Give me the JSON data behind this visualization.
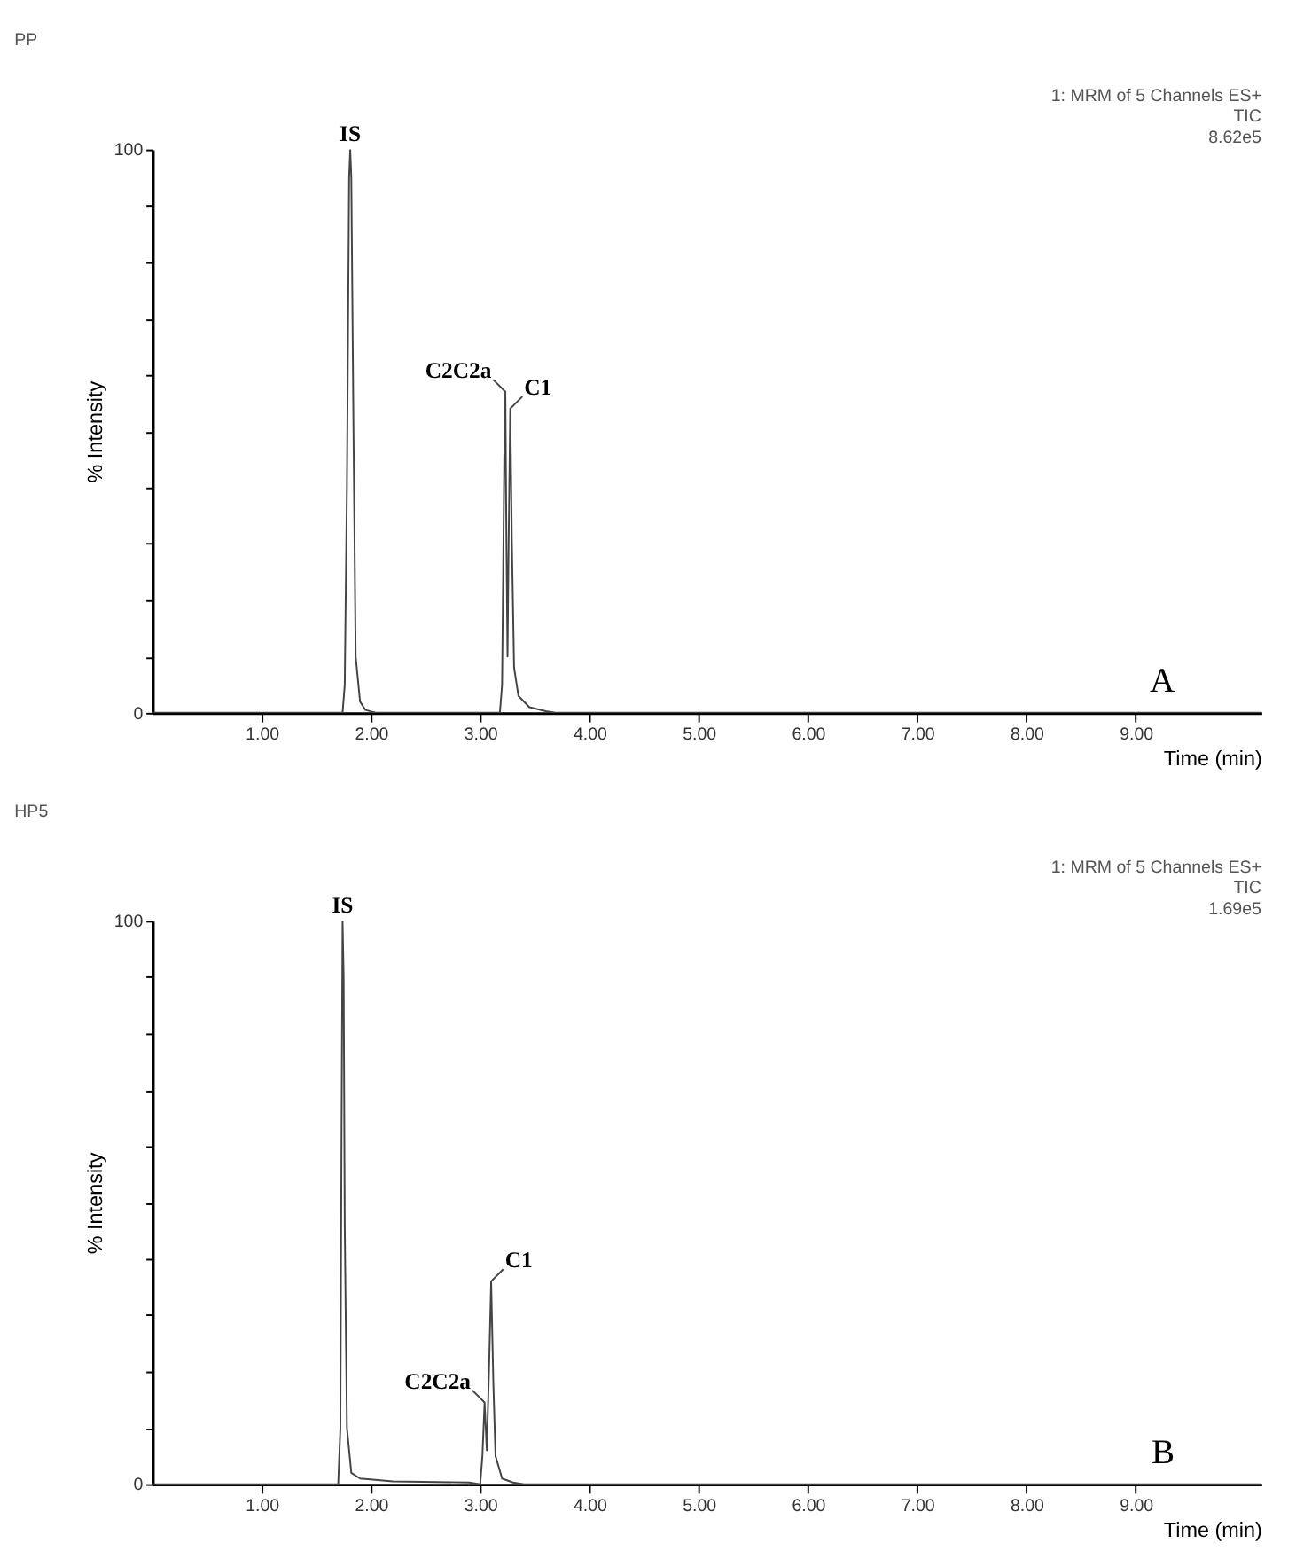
{
  "chart_data": [
    {
      "type": "line",
      "title": "PP",
      "xlabel": "Time (min)",
      "ylabel": "% Intensity",
      "x": [
        0,
        1.74,
        1.76,
        1.78,
        1.8,
        1.81,
        1.82,
        1.84,
        1.86,
        1.9,
        1.95,
        2.05,
        3.18,
        3.2,
        3.22,
        3.23,
        3.24,
        3.25,
        3.26,
        3.275,
        3.29,
        3.31,
        3.35,
        3.45,
        3.6,
        3.7,
        10.15
      ],
      "series": [
        {
          "color": "#444444",
          "values": [
            0,
            0,
            5,
            40,
            95,
            100,
            95,
            50,
            10,
            2,
            0.5,
            0,
            0,
            5,
            45,
            57,
            30,
            10,
            30,
            54,
            30,
            8,
            3,
            1,
            0.3,
            0,
            0
          ]
        }
      ],
      "xlim": [
        0,
        10.15
      ],
      "ylim": [
        0,
        100
      ],
      "xticks": [
        {
          "value": 1,
          "label": "1.00"
        },
        {
          "value": 2,
          "label": "2.00"
        },
        {
          "value": 3,
          "label": "3.00"
        },
        {
          "value": 4,
          "label": "4.00"
        },
        {
          "value": 5,
          "label": "5.00"
        },
        {
          "value": 6,
          "label": "6.00"
        },
        {
          "value": 7,
          "label": "7.00"
        },
        {
          "value": 8,
          "label": "8.00"
        },
        {
          "value": 9,
          "label": "9.00"
        }
      ],
      "yticks": [
        0,
        {
          "value": 10,
          "label": null
        },
        {
          "value": 20,
          "label": null
        },
        {
          "value": 30,
          "label": null
        },
        {
          "value": 40,
          "label": null
        },
        {
          "value": 50,
          "label": null
        },
        {
          "value": 60,
          "label": null
        },
        {
          "value": 70,
          "label": null
        },
        {
          "value": 80,
          "label": null
        },
        {
          "value": 90,
          "label": null
        },
        100
      ],
      "grid": false,
      "annotations": [
        "1: MRM of 5 Channels ES+",
        "TIC",
        "8.62e5",
        "A",
        {
          "text": "IS",
          "x": 1.81,
          "y": 100
        },
        {
          "text": "C2C2a",
          "x": 3.23,
          "y": 57
        },
        {
          "text": "C1",
          "x": 3.275,
          "y": 54
        }
      ]
    },
    {
      "type": "line",
      "title": "HP5",
      "xlabel": "Time (min)",
      "ylabel": "% Intensity",
      "x": [
        0,
        1.7,
        1.72,
        1.73,
        1.74,
        1.75,
        1.76,
        1.78,
        1.82,
        1.9,
        2.2,
        2.9,
        3.0,
        3.02,
        3.04,
        3.06,
        3.08,
        3.1,
        3.12,
        3.14,
        3.2,
        3.3,
        3.4,
        10.15
      ],
      "series": [
        {
          "color": "#444444",
          "values": [
            0,
            0,
            10,
            60,
            100,
            90,
            46,
            10,
            2,
            1,
            0.5,
            0.3,
            0,
            5,
            14.5,
            6,
            20,
            36,
            18,
            5,
            1,
            0.3,
            0,
            0
          ]
        }
      ],
      "xlim": [
        0,
        10.15
      ],
      "ylim": [
        0,
        100
      ],
      "xticks": [
        {
          "value": 1,
          "label": "1.00"
        },
        {
          "value": 2,
          "label": "2.00"
        },
        {
          "value": 3,
          "label": "3.00"
        },
        {
          "value": 4,
          "label": "4.00"
        },
        {
          "value": 5,
          "label": "5.00"
        },
        {
          "value": 6,
          "label": "6.00"
        },
        {
          "value": 7,
          "label": "7.00"
        },
        {
          "value": 8,
          "label": "8.00"
        },
        {
          "value": 9,
          "label": "9.00"
        }
      ],
      "yticks": [
        0,
        {
          "value": 10,
          "label": null
        },
        {
          "value": 20,
          "label": null
        },
        {
          "value": 30,
          "label": null
        },
        {
          "value": 40,
          "label": null
        },
        {
          "value": 50,
          "label": null
        },
        {
          "value": 60,
          "label": null
        },
        {
          "value": 70,
          "label": null
        },
        {
          "value": 80,
          "label": null
        },
        {
          "value": 90,
          "label": null
        },
        100
      ],
      "grid": false,
      "annotations": [
        "1: MRM of 5 Channels ES+",
        "TIC",
        "1.69e5",
        "B",
        {
          "text": "IS",
          "x": 1.74,
          "y": 100
        },
        {
          "text": "C2C2a",
          "x": 3.04,
          "y": 14.5
        },
        {
          "text": "C1",
          "x": 3.1,
          "y": 36
        }
      ]
    }
  ]
}
